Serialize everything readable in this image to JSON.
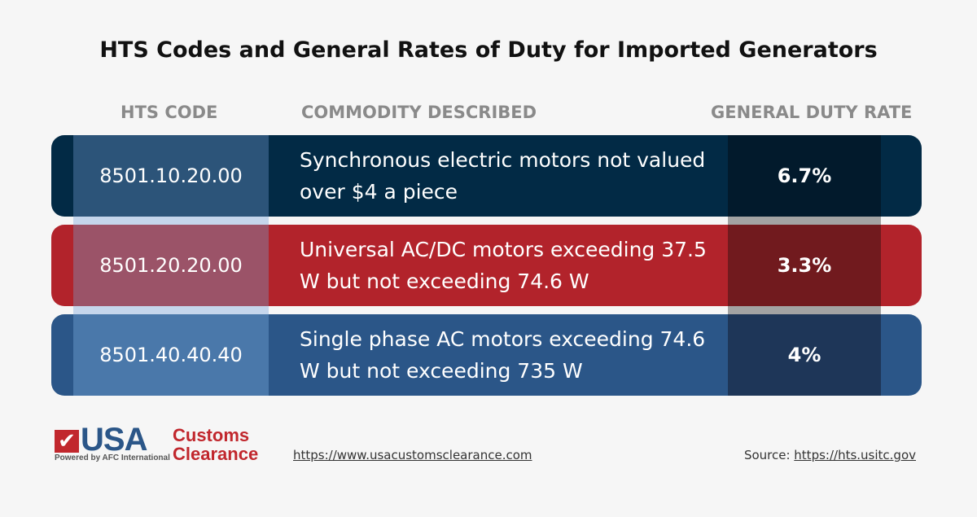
{
  "title": "HTS Codes and General Rates of Duty for Imported Generators",
  "headers": {
    "code": "HTS CODE",
    "desc": "COMMODITY DESCRIBED",
    "rate": "GENERAL DUTY RATE"
  },
  "rows": [
    {
      "code": "8501.10.20.00",
      "desc": "Synchronous electric motors not valued over $4 a piece",
      "rate": "6.7%"
    },
    {
      "code": "8501.20.20.00",
      "desc": "Universal AC/DC motors exceeding 37.5 W but not exceeding 74.6 W",
      "rate": "3.3%"
    },
    {
      "code": "8501.40.40.40",
      "desc": "Single phase AC motors exceeding 74.6 W but not exceeding 735 W",
      "rate": "4%"
    }
  ],
  "colors": {
    "row1": "#022a45",
    "row2": "#b2232b",
    "row3": "#2b5688"
  },
  "logo": {
    "main": "USA",
    "line1": "Customs",
    "line2": "Clearance",
    "tagline": "Powered by AFC International"
  },
  "footer": {
    "url": "https://www.usacustomsclearance.com",
    "source_label": "Source:",
    "source_url": "https://hts.usitc.gov"
  }
}
